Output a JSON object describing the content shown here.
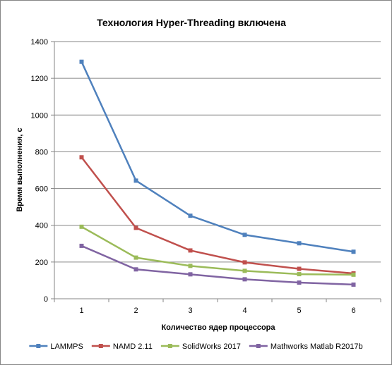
{
  "chart_data": {
    "type": "line",
    "title": "Технология Hyper-Threading включена",
    "xlabel": "Количество  ядер процессора",
    "ylabel": "Время выполнения, с",
    "x": [
      1,
      2,
      3,
      4,
      5,
      6
    ],
    "x_tick_labels": [
      "1",
      "2",
      "3",
      "4",
      "5",
      "6"
    ],
    "ylim": [
      0,
      1400
    ],
    "y_ticks": [
      0,
      200,
      400,
      600,
      800,
      1000,
      1200,
      1400
    ],
    "y_tick_labels": [
      "0",
      "200",
      "400",
      "600",
      "800",
      "1000",
      "1200",
      "1400"
    ],
    "grid": true,
    "legend_position": "bottom",
    "series": [
      {
        "name": "LAMMPS",
        "color": "#4F81BD",
        "values": [
          1290,
          643,
          452,
          348,
          302,
          256
        ]
      },
      {
        "name": "NAMD 2.11",
        "color": "#C0504D",
        "values": [
          770,
          386,
          263,
          198,
          163,
          138
        ]
      },
      {
        "name": "SolidWorks 2017",
        "color": "#9BBB59",
        "values": [
          392,
          224,
          179,
          152,
          134,
          131
        ]
      },
      {
        "name": "Mathworks Matlab R2017b",
        "color": "#8064A2",
        "values": [
          288,
          160,
          133,
          106,
          88,
          77
        ]
      }
    ]
  }
}
